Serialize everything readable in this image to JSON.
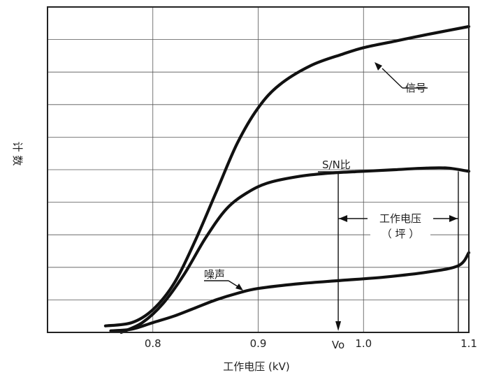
{
  "chart_data": {
    "type": "line",
    "title": "",
    "xlabel": "工作电压 (kV)",
    "ylabel": "计 数",
    "xlim": [
      0.7,
      1.1
    ],
    "y_axis_rows": 10,
    "x_ticks": [
      "0.8",
      "0.9",
      "1.0",
      "1.1"
    ],
    "grid": true,
    "series": [
      {
        "name": "信号",
        "x": [
          0.755,
          0.78,
          0.8,
          0.82,
          0.84,
          0.86,
          0.88,
          0.9,
          0.92,
          0.95,
          0.98,
          1.0,
          1.03,
          1.06,
          1.1
        ],
        "y": [
          0.2,
          0.3,
          0.7,
          1.5,
          2.8,
          4.3,
          5.8,
          6.9,
          7.6,
          8.2,
          8.55,
          8.75,
          8.95,
          9.15,
          9.4
        ]
      },
      {
        "name": "S/N比",
        "x": [
          0.77,
          0.79,
          0.81,
          0.83,
          0.85,
          0.87,
          0.89,
          0.91,
          0.94,
          0.97,
          1.0,
          1.03,
          1.06,
          1.08,
          1.1
        ],
        "y": [
          0.0,
          0.3,
          0.9,
          1.8,
          2.9,
          3.8,
          4.3,
          4.6,
          4.8,
          4.9,
          4.95,
          5.0,
          5.05,
          5.05,
          4.95
        ]
      },
      {
        "name": "噪声",
        "x": [
          0.76,
          0.78,
          0.8,
          0.82,
          0.84,
          0.86,
          0.88,
          0.9,
          0.94,
          0.98,
          1.02,
          1.06,
          1.09,
          1.1
        ],
        "y": [
          0.05,
          0.1,
          0.3,
          0.5,
          0.75,
          1.0,
          1.2,
          1.35,
          1.5,
          1.6,
          1.7,
          1.85,
          2.05,
          2.45
        ]
      }
    ],
    "annotations": {
      "vo_label": "Vo",
      "vo_x": 0.976,
      "range_label_line1": "工作电压",
      "range_label_line2": "（ 坪 ）",
      "range_x": [
        0.976,
        1.09
      ]
    }
  }
}
